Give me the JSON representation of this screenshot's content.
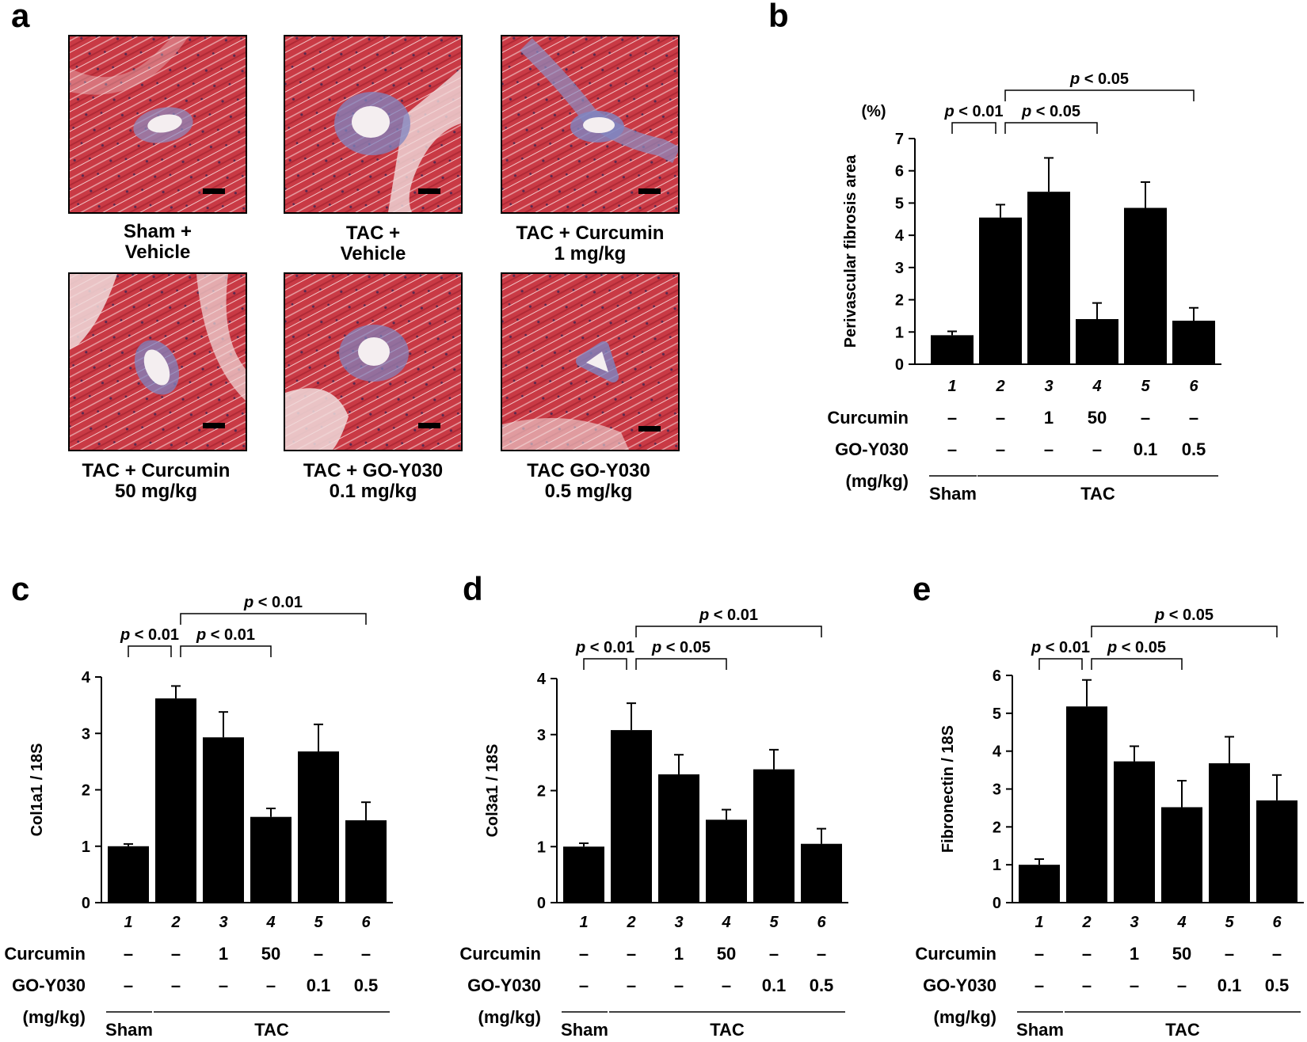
{
  "panels": {
    "a": "a",
    "b": "b",
    "c": "c",
    "d": "d",
    "e": "e"
  },
  "micrographs": [
    {
      "id": "m1",
      "line1": "Sham +",
      "line2": "Vehicle"
    },
    {
      "id": "m2",
      "line1": "TAC +",
      "line2": "Vehicle"
    },
    {
      "id": "m3",
      "line1": "TAC + Curcumin",
      "line2": "1 mg/kg"
    },
    {
      "id": "m4",
      "line1": "TAC + Curcumin",
      "line2": "50 mg/kg"
    },
    {
      "id": "m5",
      "line1": "TAC + GO-Y030",
      "line2": "0.1 mg/kg"
    },
    {
      "id": "m6",
      "line1": "TAC GO-Y030",
      "line2": "0.5 mg/kg"
    }
  ],
  "chart_data": [
    {
      "id": "b",
      "type": "bar",
      "unit_label": "(%)",
      "ylabel": "Perivascular fibrosis area",
      "ylim": [
        0,
        7
      ],
      "yticks": [
        0,
        1,
        2,
        3,
        4,
        5,
        6,
        7
      ],
      "categories": [
        "1",
        "2",
        "3",
        "4",
        "5",
        "6"
      ],
      "values": [
        0.9,
        4.55,
        5.35,
        1.4,
        4.85,
        1.35
      ],
      "errors": [
        0.12,
        0.4,
        1.05,
        0.5,
        0.8,
        0.4
      ],
      "rows": [
        {
          "label": "Curcumin",
          "values": [
            "–",
            "–",
            "1",
            "50",
            "–",
            "–"
          ]
        },
        {
          "label": "GO-Y030",
          "values": [
            "–",
            "–",
            "–",
            "–",
            "0.1",
            "0.5"
          ]
        }
      ],
      "unit_row": "(mg/kg)",
      "groups": [
        {
          "label": "Sham",
          "from": 0,
          "to": 0
        },
        {
          "label": "TAC",
          "from": 1,
          "to": 5
        }
      ],
      "brackets": [
        {
          "from": 0,
          "to": 1,
          "label": "p < 0.01",
          "level": 0
        },
        {
          "from": 1,
          "to": 3,
          "label": "p < 0.05",
          "level": 0
        },
        {
          "from": 1,
          "to": 5,
          "label": "p < 0.05",
          "level": 1
        }
      ]
    },
    {
      "id": "c",
      "type": "bar",
      "ylabel": "Col1a1 / 18S",
      "ylim": [
        0,
        4
      ],
      "yticks": [
        0,
        1,
        2,
        3,
        4
      ],
      "categories": [
        "1",
        "2",
        "3",
        "4",
        "5",
        "6"
      ],
      "values": [
        1.0,
        3.62,
        2.93,
        1.52,
        2.68,
        1.46
      ],
      "errors": [
        0.04,
        0.22,
        0.45,
        0.15,
        0.48,
        0.32
      ],
      "rows": [
        {
          "label": "Curcumin",
          "values": [
            "–",
            "–",
            "1",
            "50",
            "–",
            "–"
          ]
        },
        {
          "label": "GO-Y030",
          "values": [
            "–",
            "–",
            "–",
            "–",
            "0.1",
            "0.5"
          ]
        }
      ],
      "unit_row": "(mg/kg)",
      "groups": [
        {
          "label": "Sham",
          "from": 0,
          "to": 0
        },
        {
          "label": "TAC",
          "from": 1,
          "to": 5
        }
      ],
      "brackets": [
        {
          "from": 0,
          "to": 1,
          "label": "p < 0.01",
          "level": 0
        },
        {
          "from": 1,
          "to": 3,
          "label": "p < 0.01",
          "level": 0
        },
        {
          "from": 1,
          "to": 5,
          "label": "p < 0.01",
          "level": 1
        }
      ]
    },
    {
      "id": "d",
      "type": "bar",
      "ylabel": "Col3a1 / 18S",
      "ylim": [
        0,
        4
      ],
      "yticks": [
        0,
        1,
        2,
        3,
        4
      ],
      "categories": [
        "1",
        "2",
        "3",
        "4",
        "5",
        "6"
      ],
      "values": [
        1.0,
        3.08,
        2.29,
        1.48,
        2.38,
        1.05
      ],
      "errors": [
        0.06,
        0.48,
        0.35,
        0.18,
        0.35,
        0.27
      ],
      "rows": [
        {
          "label": "Curcumin",
          "values": [
            "–",
            "–",
            "1",
            "50",
            "–",
            "–"
          ]
        },
        {
          "label": "GO-Y030",
          "values": [
            "–",
            "–",
            "–",
            "–",
            "0.1",
            "0.5"
          ]
        }
      ],
      "unit_row": "(mg/kg)",
      "groups": [
        {
          "label": "Sham",
          "from": 0,
          "to": 0
        },
        {
          "label": "TAC",
          "from": 1,
          "to": 5
        }
      ],
      "brackets": [
        {
          "from": 0,
          "to": 1,
          "label": "p < 0.01",
          "level": 0
        },
        {
          "from": 1,
          "to": 3,
          "label": "p < 0.05",
          "level": 0
        },
        {
          "from": 1,
          "to": 5,
          "label": "p < 0.01",
          "level": 1
        }
      ]
    },
    {
      "id": "e",
      "type": "bar",
      "ylabel": "Fibronectin / 18S",
      "ylim": [
        0,
        6
      ],
      "yticks": [
        0,
        1,
        2,
        3,
        4,
        5,
        6
      ],
      "categories": [
        "1",
        "2",
        "3",
        "4",
        "5",
        "6"
      ],
      "values": [
        1.0,
        5.18,
        3.73,
        2.52,
        3.68,
        2.7
      ],
      "errors": [
        0.15,
        0.7,
        0.4,
        0.7,
        0.7,
        0.67
      ],
      "rows": [
        {
          "label": "Curcumin",
          "values": [
            "–",
            "–",
            "1",
            "50",
            "–",
            "–"
          ]
        },
        {
          "label": "GO-Y030",
          "values": [
            "–",
            "–",
            "–",
            "–",
            "0.1",
            "0.5"
          ]
        }
      ],
      "unit_row": "(mg/kg)",
      "groups": [
        {
          "label": "Sham",
          "from": 0,
          "to": 0
        },
        {
          "label": "TAC",
          "from": 1,
          "to": 5
        }
      ],
      "brackets": [
        {
          "from": 0,
          "to": 1,
          "label": "p < 0.01",
          "level": 0
        },
        {
          "from": 1,
          "to": 3,
          "label": "p < 0.05",
          "level": 0
        },
        {
          "from": 1,
          "to": 5,
          "label": "p < 0.05",
          "level": 1
        }
      ]
    }
  ]
}
